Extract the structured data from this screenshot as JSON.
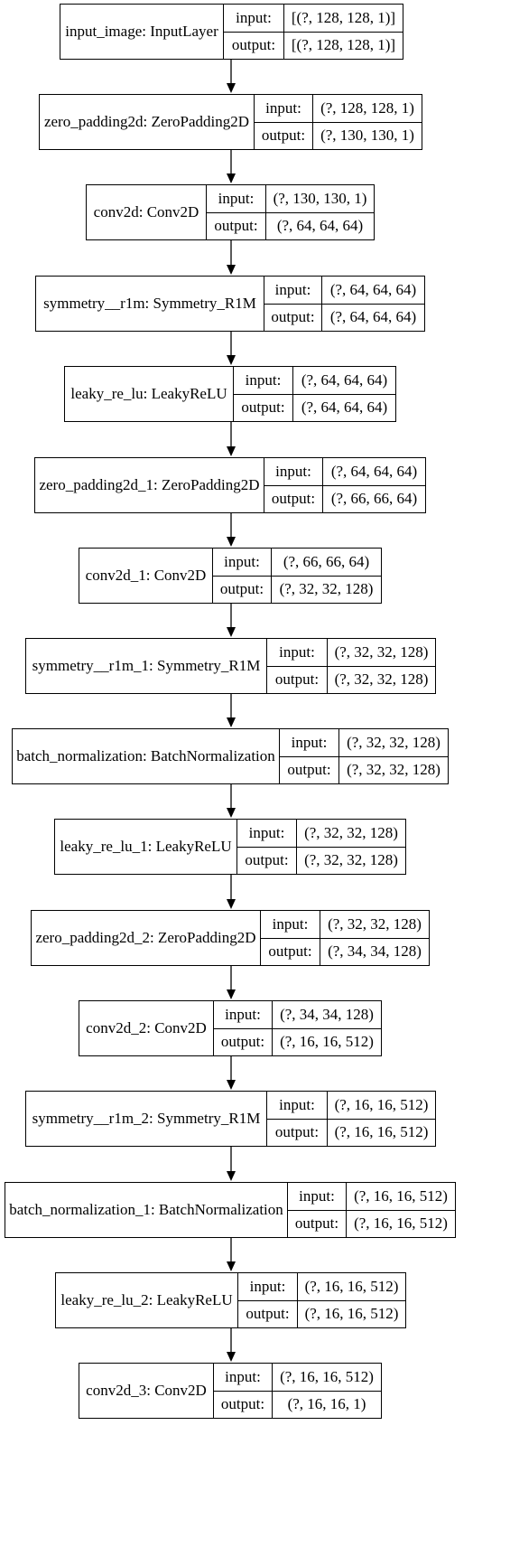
{
  "diagram": {
    "port_labels": {
      "input": "input:",
      "output": "output:"
    },
    "layers": [
      {
        "name": "input_image: InputLayer",
        "input": "[(?, 128, 128, 1)]",
        "output": "[(?, 128, 128, 1)]"
      },
      {
        "name": "zero_padding2d: ZeroPadding2D",
        "input": "(?, 128, 128, 1)",
        "output": "(?, 130, 130, 1)"
      },
      {
        "name": "conv2d: Conv2D",
        "input": "(?, 130, 130, 1)",
        "output": "(?, 64, 64, 64)"
      },
      {
        "name": "symmetry__r1m: Symmetry_R1M",
        "input": "(?, 64, 64, 64)",
        "output": "(?, 64, 64, 64)"
      },
      {
        "name": "leaky_re_lu: LeakyReLU",
        "input": "(?, 64, 64, 64)",
        "output": "(?, 64, 64, 64)"
      },
      {
        "name": "zero_padding2d_1: ZeroPadding2D",
        "input": "(?, 64, 64, 64)",
        "output": "(?, 66, 66, 64)"
      },
      {
        "name": "conv2d_1: Conv2D",
        "input": "(?, 66, 66, 64)",
        "output": "(?, 32, 32, 128)"
      },
      {
        "name": "symmetry__r1m_1: Symmetry_R1M",
        "input": "(?, 32, 32, 128)",
        "output": "(?, 32, 32, 128)"
      },
      {
        "name": "batch_normalization: BatchNormalization",
        "input": "(?, 32, 32, 128)",
        "output": "(?, 32, 32, 128)"
      },
      {
        "name": "leaky_re_lu_1: LeakyReLU",
        "input": "(?, 32, 32, 128)",
        "output": "(?, 32, 32, 128)"
      },
      {
        "name": "zero_padding2d_2: ZeroPadding2D",
        "input": "(?, 32, 32, 128)",
        "output": "(?, 34, 34, 128)"
      },
      {
        "name": "conv2d_2: Conv2D",
        "input": "(?, 34, 34, 128)",
        "output": "(?, 16, 16, 512)"
      },
      {
        "name": "symmetry__r1m_2: Symmetry_R1M",
        "input": "(?, 16, 16, 512)",
        "output": "(?, 16, 16, 512)"
      },
      {
        "name": "batch_normalization_1: BatchNormalization",
        "input": "(?, 16, 16, 512)",
        "output": "(?, 16, 16, 512)"
      },
      {
        "name": "leaky_re_lu_2: LeakyReLU",
        "input": "(?, 16, 16, 512)",
        "output": "(?, 16, 16, 512)"
      },
      {
        "name": "conv2d_3: Conv2D",
        "input": "(?, 16, 16, 512)",
        "output": "(?, 16, 16, 1)"
      }
    ]
  }
}
